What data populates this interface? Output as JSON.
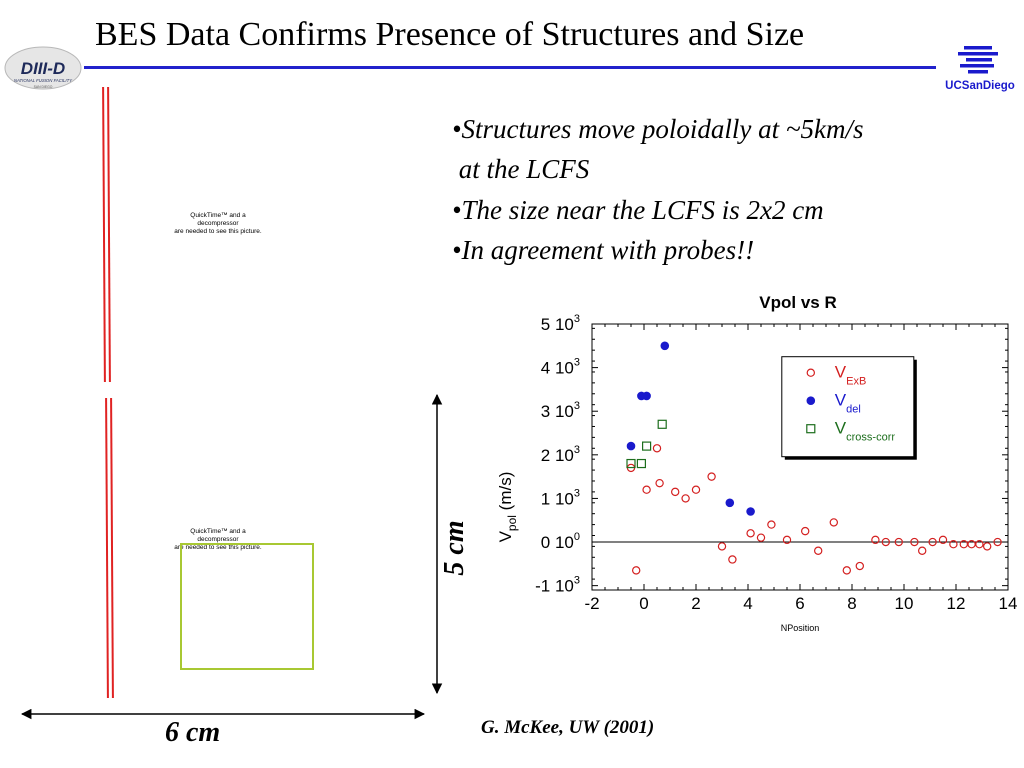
{
  "slide": {
    "title": "BES Data Confirms Presence of Structures and Size",
    "bullets": [
      "•Structures move poloidally at ~5km/s",
      " at the LCFS",
      "•The size near the LCFS is 2x2 cm",
      "•In agreement with probes!!"
    ],
    "credit": "G. McKee, UW (2001)",
    "colors": {
      "title_rule": "#2222cc",
      "separatrix": "#e02222",
      "structure_box": "#a8c832"
    }
  },
  "logos": {
    "diiid": {
      "main": "DIII-D",
      "sub": "NATIONAL FUSION FACILITY",
      "tiny": "SAN DIEGO"
    },
    "ucsd": {
      "text": "UCSanDiego"
    }
  },
  "image_placeholders": [
    {
      "lines": [
        "QuickTime™ and a",
        "decompressor",
        "are needed to see this picture."
      ]
    },
    {
      "lines": [
        "QuickTime™ and a",
        "decompressor",
        "are needed to see this picture."
      ]
    }
  ],
  "dimensions": {
    "vertical": "5 cm",
    "horizontal": "6 cm"
  },
  "chart_data": {
    "type": "scatter",
    "title": "Vpol vs R",
    "xlabel": "NPosition",
    "ylabel": {
      "main": "V",
      "sub": "pol",
      "rest": "(m/s)"
    },
    "xlim": [
      -2,
      14
    ],
    "ylim": [
      -1100,
      5000
    ],
    "x_ticks": [
      -2,
      0,
      2,
      4,
      6,
      8,
      10,
      12,
      14
    ],
    "y_ticks": [
      {
        "value": 5000,
        "mantissa": "5 10",
        "exp": "3"
      },
      {
        "value": 4000,
        "mantissa": "4 10",
        "exp": "3"
      },
      {
        "value": 3000,
        "mantissa": "3 10",
        "exp": "3"
      },
      {
        "value": 2000,
        "mantissa": "2 10",
        "exp": "3"
      },
      {
        "value": 1000,
        "mantissa": "1 10",
        "exp": "3"
      },
      {
        "value": 0,
        "mantissa": "0 10",
        "exp": "0"
      },
      {
        "value": -1000,
        "mantissa": "-1 10",
        "exp": "3"
      }
    ],
    "zero_line": 0,
    "legend_position": "top-right",
    "series": [
      {
        "name": "V",
        "sub": "ExB",
        "color": "#d42020",
        "marker": "open-circle",
        "points": [
          [
            -0.5,
            1700
          ],
          [
            -0.3,
            -650
          ],
          [
            0.1,
            1200
          ],
          [
            0.5,
            2150
          ],
          [
            0.6,
            1350
          ],
          [
            1.2,
            1150
          ],
          [
            1.6,
            1000
          ],
          [
            2.0,
            1200
          ],
          [
            2.6,
            1500
          ],
          [
            3.0,
            -100
          ],
          [
            3.4,
            -400
          ],
          [
            4.1,
            200
          ],
          [
            4.5,
            100
          ],
          [
            4.9,
            400
          ],
          [
            5.5,
            50
          ],
          [
            6.2,
            250
          ],
          [
            6.7,
            -200
          ],
          [
            7.3,
            450
          ],
          [
            7.8,
            -650
          ],
          [
            8.3,
            -550
          ],
          [
            8.9,
            50
          ],
          [
            9.3,
            0
          ],
          [
            9.8,
            0
          ],
          [
            10.4,
            0
          ],
          [
            10.7,
            -200
          ],
          [
            11.1,
            0
          ],
          [
            11.5,
            50
          ],
          [
            11.9,
            -50
          ],
          [
            12.3,
            -50
          ],
          [
            12.6,
            -50
          ],
          [
            12.9,
            -50
          ],
          [
            13.2,
            -100
          ],
          [
            13.6,
            0
          ]
        ]
      },
      {
        "name": "V",
        "sub": "del",
        "color": "#1a1acc",
        "marker": "filled-circle",
        "points": [
          [
            -0.5,
            2200
          ],
          [
            -0.1,
            3350
          ],
          [
            0.1,
            3350
          ],
          [
            0.8,
            4500
          ],
          [
            3.3,
            900
          ],
          [
            4.1,
            700
          ]
        ]
      },
      {
        "name": "V",
        "sub": "cross-corr",
        "color": "#1d6e1d",
        "marker": "open-square",
        "points": [
          [
            -0.5,
            1800
          ],
          [
            -0.1,
            1800
          ],
          [
            0.1,
            2200
          ],
          [
            0.7,
            2700
          ]
        ]
      }
    ]
  }
}
